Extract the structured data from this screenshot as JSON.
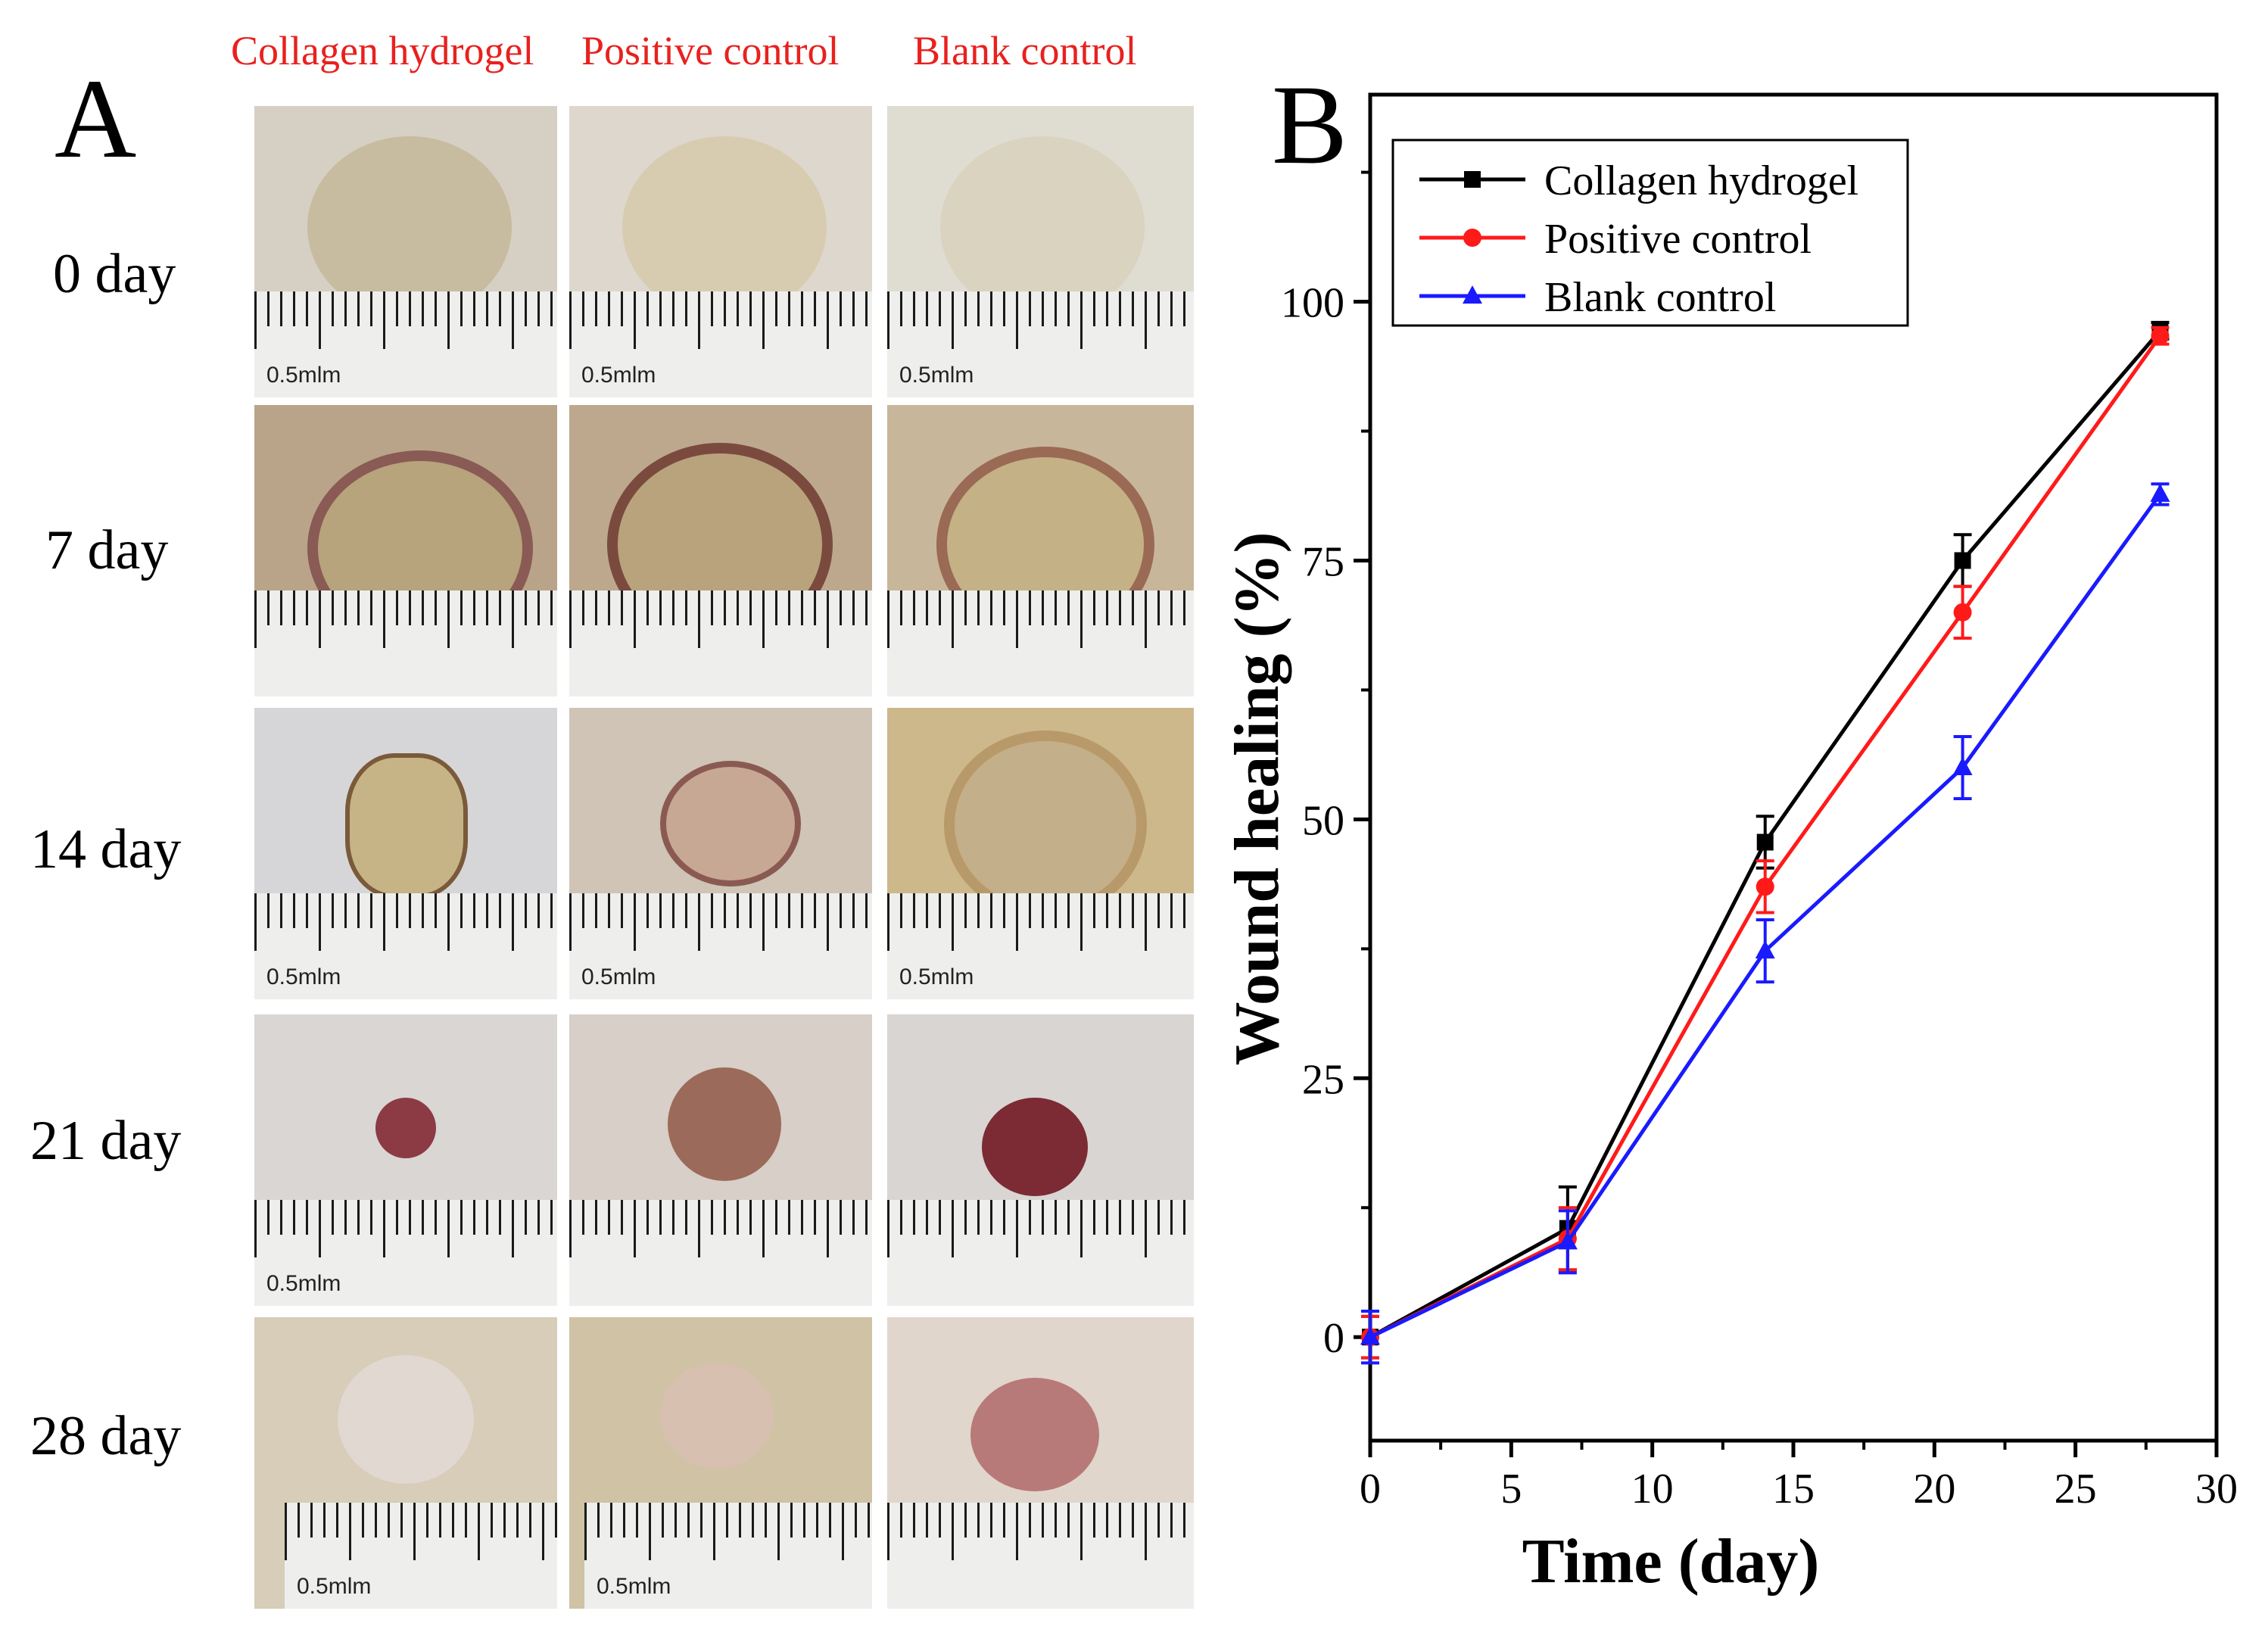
{
  "panel_a": {
    "letter": "A",
    "columns": [
      "Collagen hydrogel",
      "Positive control",
      "Blank control"
    ],
    "rows": [
      "0 day",
      "7 day",
      "14 day",
      "21 day",
      "28 day"
    ],
    "ruler_label": "0.5mlm"
  },
  "panel_b": {
    "letter": "B"
  },
  "colors": {
    "header_red": "#e8211e",
    "collagen": "#000000",
    "positive": "#ff1a1a",
    "blank": "#1a1aff"
  },
  "chart_data": {
    "type": "line",
    "xlabel": "Time (day)",
    "ylabel": "Wound healing (%)",
    "xlim": [
      0,
      30
    ],
    "ylim": [
      -10,
      120
    ],
    "x_ticks": [
      "0",
      "5",
      "10",
      "15",
      "20",
      "25",
      "30"
    ],
    "y_ticks": [
      "0",
      "25",
      "50",
      "75",
      "100"
    ],
    "legend_position": "top-left",
    "grid": false,
    "x": [
      0,
      7,
      14,
      21,
      28
    ],
    "series": [
      {
        "name": "Collagen hydrogel",
        "color": "#000000",
        "marker": "square",
        "values": [
          0,
          10.5,
          47.8,
          75.0,
          97.2
        ],
        "errors": [
          2.0,
          4.0,
          2.5,
          2.5,
          0.8
        ]
      },
      {
        "name": "Positive control",
        "color": "#ff1a1a",
        "marker": "circle",
        "values": [
          0,
          9.5,
          43.5,
          70.0,
          96.7
        ],
        "errors": [
          2.0,
          3.0,
          2.5,
          2.5,
          0.8
        ]
      },
      {
        "name": "Blank control",
        "color": "#1a1aff",
        "marker": "triangle",
        "values": [
          0,
          9.2,
          37.3,
          55.0,
          81.4
        ],
        "errors": [
          2.5,
          3.0,
          3.0,
          3.0,
          1.0
        ]
      }
    ]
  }
}
